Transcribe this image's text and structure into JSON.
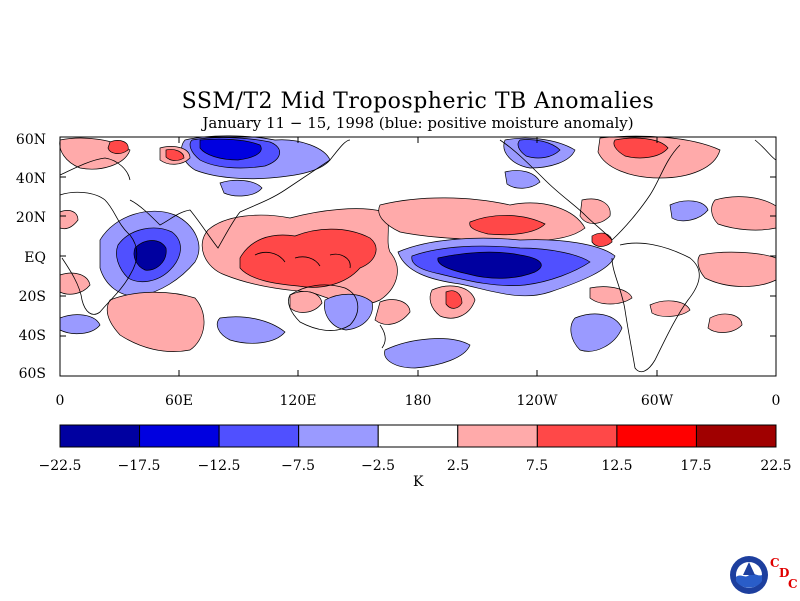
{
  "title": "SSM/T2 Mid Tropospheric TB Anomalies",
  "subtitle": "January 11 − 15, 1998 (blue: positive moisture anomaly)",
  "lat_labels": [
    "60N",
    "40N",
    "20N",
    "EQ",
    "20S",
    "40S",
    "60S"
  ],
  "lon_labels": [
    "0",
    "60E",
    "120E",
    "180",
    "120W",
    "60W",
    "0"
  ],
  "colorbar": {
    "ticks": [
      "−22.5",
      "−17.5",
      "−12.5",
      "−7.5",
      "−2.5",
      "2.5",
      "7.5",
      "12.5",
      "17.5",
      "22.5"
    ],
    "colors": [
      "#0000a0",
      "#0000e0",
      "#5050ff",
      "#9a9aff",
      "#ffffff",
      "#ffaaaa",
      "#ff4848",
      "#ff0000",
      "#a00000"
    ],
    "unit": "K"
  },
  "logo": {
    "icon": "noaa-logo",
    "letters": [
      "C",
      "D",
      "C"
    ]
  },
  "map_data": {
    "region": "global 60S-60N",
    "lat_range": [
      -60,
      60
    ],
    "lon_range": [
      0,
      360
    ],
    "contour_interval": 5,
    "colors": {
      "red": "#ff4848",
      "pink": "#ffaaaa",
      "lightblue": "#9a9aff",
      "blue": "#5050ff",
      "darkblue": "#0000a0",
      "brightblue": "#0000e0"
    }
  }
}
